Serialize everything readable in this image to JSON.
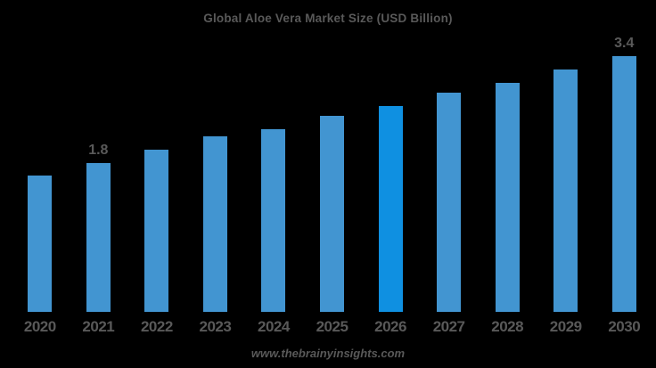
{
  "title": "Global Aloe Vera Market Size (USD Billion)",
  "watermark": "www.thebrainyinsights.com",
  "colors": {
    "background": "#000000",
    "bar": "#4295D1",
    "bar_highlight": "#0F90E1",
    "text": "#595959"
  },
  "chart_data": {
    "type": "bar",
    "title": "Global Aloe Vera Market Size (USD Billion)",
    "categories": [
      "2020",
      "2021",
      "2022",
      "2023",
      "2024",
      "2025",
      "2026",
      "2027",
      "2028",
      "2029",
      "2030"
    ],
    "values": [
      1.6,
      1.8,
      2.0,
      2.2,
      2.3,
      2.5,
      2.65,
      2.85,
      3.0,
      3.2,
      3.4
    ],
    "value_labels": {
      "2021": "1.8",
      "2030": "3.4"
    },
    "highlighted_category": "2026",
    "xlabel": "",
    "ylabel": "",
    "ylim": [
      -0.45,
      3.85
    ],
    "grid": false,
    "legend": false
  }
}
